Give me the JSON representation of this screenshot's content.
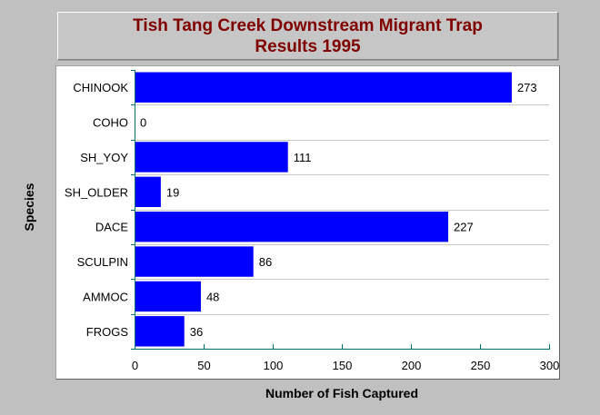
{
  "chart_data": {
    "type": "bar",
    "orientation": "horizontal",
    "title_line1": "Tish Tang Creek Downstream Migrant Trap",
    "title_line2": "Results 1995",
    "xlabel": "Number of Fish Captured",
    "ylabel": "Species",
    "categories": [
      "CHINOOK",
      "COHO",
      "SH_YOY",
      "SH_OLDER",
      "DACE",
      "SCULPIN",
      "AMMOC",
      "FROGS"
    ],
    "values": [
      273,
      0,
      111,
      19,
      227,
      86,
      48,
      36
    ],
    "xlim": [
      0,
      300
    ],
    "xticks": [
      0,
      50,
      100,
      150,
      200,
      250,
      300
    ],
    "grid": true,
    "bar_color": "#0000ff",
    "title_color": "#800000",
    "background_color": "#c0c0c0"
  }
}
